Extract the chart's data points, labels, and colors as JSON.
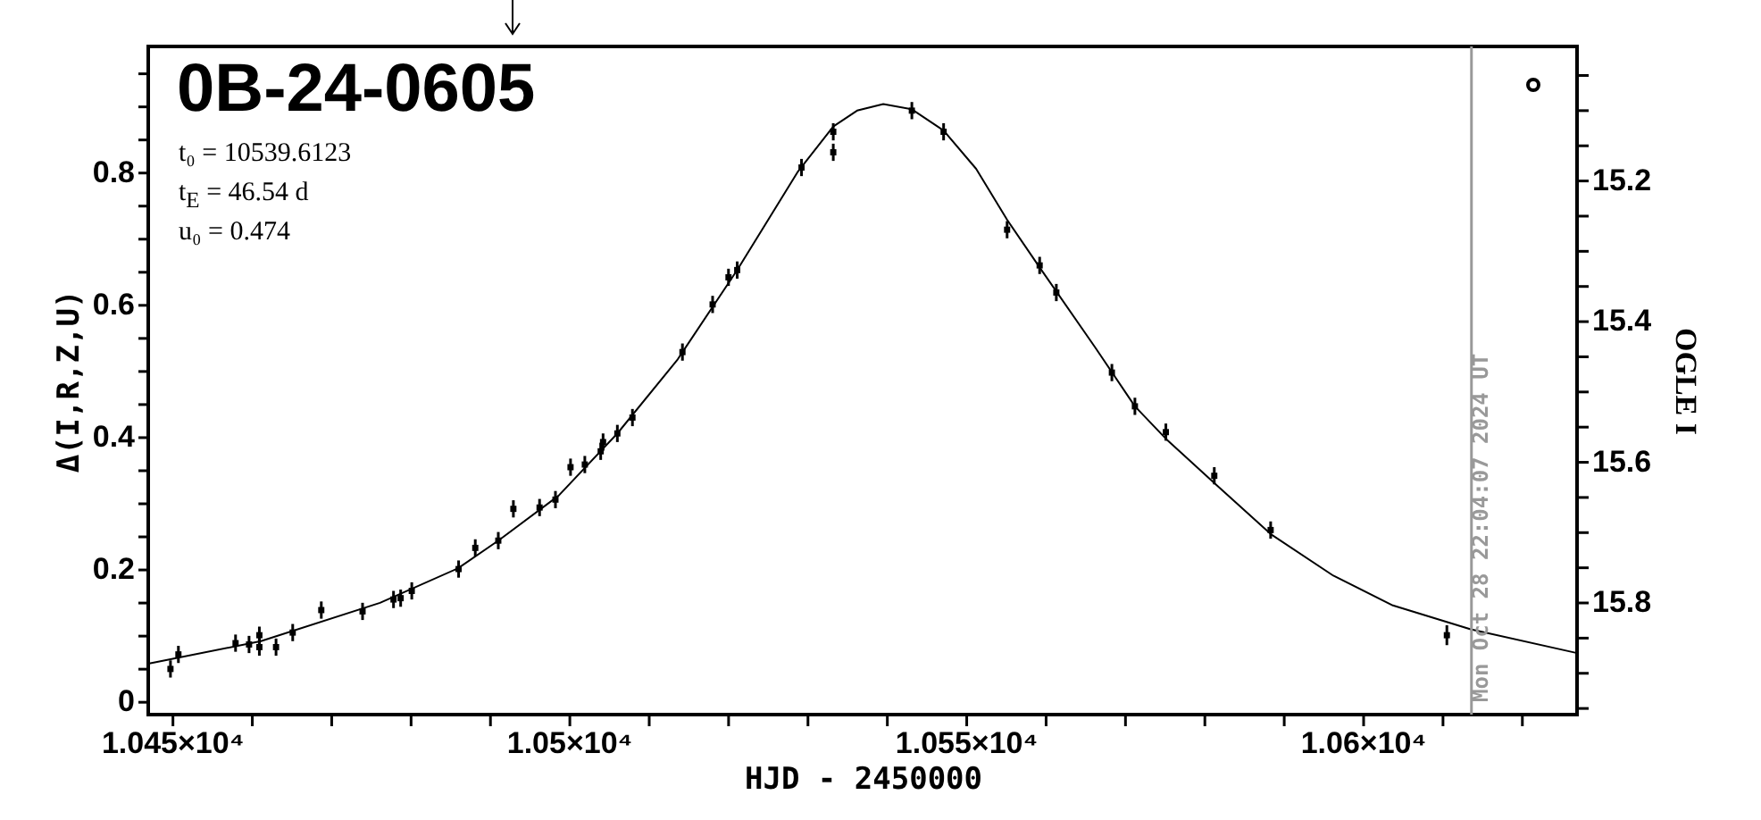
{
  "chart_data": {
    "type": "scatter",
    "title": "0B-24-0605",
    "xlabel": "HJD - 2450000",
    "ylabel": "Δ(I,R,Z,U)",
    "y2label": "OGLE I",
    "annotations": [
      "t₀ = 10539.6123",
      "t$_{E}$ = 46.54 d",
      "u₀ = 0.474",
      {
        "text": "Mon Oct 28 22:04:07 2024 UT",
        "x": 10613.7
      }
    ],
    "xlim": [
      10447,
      10627
    ],
    "ylim": [
      -0.02,
      0.99
    ],
    "y2lim": [
      15.96,
      15.01
    ],
    "xticks": [
      {
        "value": 10450,
        "label": "1.045×10⁴"
      },
      {
        "value": 10460,
        "label": null
      },
      {
        "value": 10470,
        "label": null
      },
      {
        "value": 10480,
        "label": null
      },
      {
        "value": 10490,
        "label": null
      },
      {
        "value": 10500,
        "label": "1.05×10⁴"
      },
      {
        "value": 10510,
        "label": null
      },
      {
        "value": 10520,
        "label": null
      },
      {
        "value": 10530,
        "label": null
      },
      {
        "value": 10540,
        "label": null
      },
      {
        "value": 10550,
        "label": "1.055×10⁴"
      },
      {
        "value": 10560,
        "label": null
      },
      {
        "value": 10570,
        "label": null
      },
      {
        "value": 10580,
        "label": null
      },
      {
        "value": 10590,
        "label": null
      },
      {
        "value": 10600,
        "label": "1.06×10⁴"
      },
      {
        "value": 10610,
        "label": null
      },
      {
        "value": 10620,
        "label": null
      }
    ],
    "yticks": [
      0,
      {
        "value": 0.05,
        "label": null
      },
      {
        "value": 0.1,
        "label": null
      },
      {
        "value": 0.15,
        "label": null
      },
      0.2,
      {
        "value": 0.25,
        "label": null
      },
      {
        "value": 0.3,
        "label": null
      },
      {
        "value": 0.35,
        "label": null
      },
      0.4,
      {
        "value": 0.45,
        "label": null
      },
      {
        "value": 0.5,
        "label": null
      },
      {
        "value": 0.55,
        "label": null
      },
      0.6,
      {
        "value": 0.65,
        "label": null
      },
      {
        "value": 0.7,
        "label": null
      },
      {
        "value": 0.75,
        "label": null
      },
      0.8,
      {
        "value": 0.85,
        "label": null
      },
      {
        "value": 0.9,
        "label": null
      },
      {
        "value": 0.95,
        "label": null
      }
    ],
    "y2ticks": [
      {
        "value": 15.05,
        "label": null
      },
      {
        "value": 15.1,
        "label": null
      },
      {
        "value": 15.15,
        "label": null
      },
      15.2,
      {
        "value": 15.25,
        "label": null
      },
      {
        "value": 15.3,
        "label": null
      },
      {
        "value": 15.35,
        "label": null
      },
      15.4,
      {
        "value": 15.45,
        "label": null
      },
      {
        "value": 15.5,
        "label": null
      },
      {
        "value": 15.55,
        "label": null
      },
      15.6,
      {
        "value": 15.65,
        "label": null
      },
      {
        "value": 15.7,
        "label": null
      },
      {
        "value": 15.75,
        "label": null
      },
      15.8,
      {
        "value": 15.85,
        "label": null
      },
      {
        "value": 15.9,
        "label": null
      },
      {
        "value": 15.95,
        "label": null
      }
    ],
    "ref_lines": [
      {
        "axis": "x",
        "value": 10613.7,
        "color": "#999999"
      }
    ],
    "series": [
      {
        "color": "#000000",
        "marker": "square",
        "x": [
          10449.8,
          10450.8,
          10458.0,
          10459.7,
          10461.0,
          10461.0,
          10463.1,
          10465.2,
          10468.8,
          10474.0,
          10477.9,
          10478.8,
          10480.2,
          10486.1,
          10488.2,
          10491.1,
          10493.0,
          10496.3,
          10498.3,
          10500.2,
          10502.0,
          10504.0,
          10504.3,
          10506.1,
          10508.0,
          10514.3,
          10518.1,
          10520.1,
          10521.2,
          10529.3,
          10533.3,
          10533.3,
          10543.2,
          10547.2,
          10555.2,
          10559.3,
          10561.4,
          10568.4,
          10571.3,
          10575.2,
          10581.3,
          10588.4,
          10610.6
        ],
        "values": [
          0.049,
          0.071,
          0.088,
          0.086,
          0.082,
          0.1,
          0.082,
          0.104,
          0.138,
          0.136,
          0.154,
          0.156,
          0.167,
          0.2,
          0.232,
          0.243,
          0.291,
          0.293,
          0.305,
          0.354,
          0.358,
          0.378,
          0.392,
          0.405,
          0.429,
          0.528,
          0.6,
          0.641,
          0.652,
          0.807,
          0.861,
          0.83,
          0.893,
          0.861,
          0.713,
          0.659,
          0.618,
          0.497,
          0.446,
          0.407,
          0.341,
          0.259,
          0.1
        ],
        "errors": [
          0.013,
          0.013,
          0.013,
          0.013,
          0.013,
          0.013,
          0.013,
          0.013,
          0.013,
          0.013,
          0.013,
          0.013,
          0.013,
          0.013,
          0.013,
          0.013,
          0.013,
          0.013,
          0.013,
          0.013,
          0.013,
          0.013,
          0.013,
          0.013,
          0.013,
          0.013,
          0.013,
          0.013,
          0.013,
          0.013,
          0.013,
          0.013,
          0.013,
          0.013,
          0.013,
          0.013,
          0.013,
          0.013,
          0.013,
          0.013,
          0.013,
          0.013,
          0.015
        ]
      },
      {
        "type": "line",
        "color": "#000000",
        "x": [
          10447.0,
          10461.2,
          10476.2,
          10486.0,
          10491.1,
          10498.7,
          10506.1,
          10513.7,
          10521.2,
          10528.8,
          10533.3,
          10536.3,
          10539.6,
          10543.2,
          10547.2,
          10551.3,
          10555.2,
          10559.3,
          10566.3,
          10571.3,
          10575.2,
          10581.3,
          10588.4,
          10596.3,
          10603.8,
          10613.6,
          10627.0
        ],
        "values": [
          0.057,
          0.091,
          0.149,
          0.201,
          0.243,
          0.311,
          0.405,
          0.517,
          0.652,
          0.8,
          0.869,
          0.893,
          0.903,
          0.895,
          0.863,
          0.805,
          0.728,
          0.656,
          0.535,
          0.446,
          0.397,
          0.33,
          0.253,
          0.19,
          0.145,
          0.109,
          0.073
        ]
      }
    ]
  }
}
